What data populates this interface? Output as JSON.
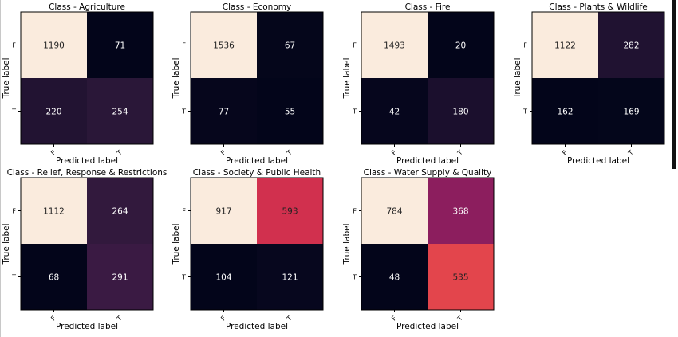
{
  "figure": {
    "tick_labels": [
      "F",
      "T"
    ],
    "xlabel": "Predicted label",
    "ylabel": "True label"
  },
  "colors": {
    "cmap": [
      "#03051a",
      "#140c28",
      "#2b1739",
      "#461d4a",
      "#63205a",
      "#84205f",
      "#a8195a",
      "#cb2a4e",
      "#e5474c",
      "#f1714f",
      "#f59b6b",
      "#f6c19e",
      "#faebdd"
    ],
    "text_on_light": "#222222",
    "text_on_dark": "#ffffff",
    "border": "#000000",
    "right_edge_bar": "#111111"
  },
  "chart_data": [
    {
      "type": "heatmap",
      "title": "Class - Agriculture",
      "x_categories": [
        "F",
        "T"
      ],
      "y_categories": [
        "F",
        "T"
      ],
      "values": [
        [
          1190,
          71
        ],
        [
          220,
          254
        ]
      ],
      "xlabel": "Predicted label",
      "ylabel": "True label",
      "grid": false,
      "legend": "none"
    },
    {
      "type": "heatmap",
      "title": "Class - Economy",
      "x_categories": [
        "F",
        "T"
      ],
      "y_categories": [
        "F",
        "T"
      ],
      "values": [
        [
          1536,
          67
        ],
        [
          77,
          55
        ]
      ],
      "xlabel": "Predicted label",
      "ylabel": "True label",
      "grid": false,
      "legend": "none"
    },
    {
      "type": "heatmap",
      "title": "Class - Fire",
      "x_categories": [
        "F",
        "T"
      ],
      "y_categories": [
        "F",
        "T"
      ],
      "values": [
        [
          1493,
          20
        ],
        [
          42,
          180
        ]
      ],
      "xlabel": "Predicted label",
      "ylabel": "True label",
      "grid": false,
      "legend": "none"
    },
    {
      "type": "heatmap",
      "title": "Class - Plants & Wildlife",
      "x_categories": [
        "F",
        "T"
      ],
      "y_categories": [
        "F",
        "T"
      ],
      "values": [
        [
          1122,
          282
        ],
        [
          162,
          169
        ]
      ],
      "xlabel": "Predicted label",
      "ylabel": "True label",
      "grid": false,
      "legend": "none"
    },
    {
      "type": "heatmap",
      "title": "Class - Relief, Response & Restrictions",
      "x_categories": [
        "F",
        "T"
      ],
      "y_categories": [
        "F",
        "T"
      ],
      "values": [
        [
          1112,
          264
        ],
        [
          68,
          291
        ]
      ],
      "xlabel": "Predicted label",
      "ylabel": "True label",
      "grid": false,
      "legend": "none"
    },
    {
      "type": "heatmap",
      "title": "Class - Society & Public Health",
      "x_categories": [
        "F",
        "T"
      ],
      "y_categories": [
        "F",
        "T"
      ],
      "values": [
        [
          917,
          593
        ],
        [
          104,
          121
        ]
      ],
      "xlabel": "Predicted label",
      "ylabel": "True label",
      "grid": false,
      "legend": "none"
    },
    {
      "type": "heatmap",
      "title": "Class - Water Supply & Quality",
      "x_categories": [
        "F",
        "T"
      ],
      "y_categories": [
        "F",
        "T"
      ],
      "values": [
        [
          784,
          368
        ],
        [
          48,
          535
        ]
      ],
      "xlabel": "Predicted label",
      "ylabel": "True label",
      "grid": false,
      "legend": "none"
    }
  ]
}
